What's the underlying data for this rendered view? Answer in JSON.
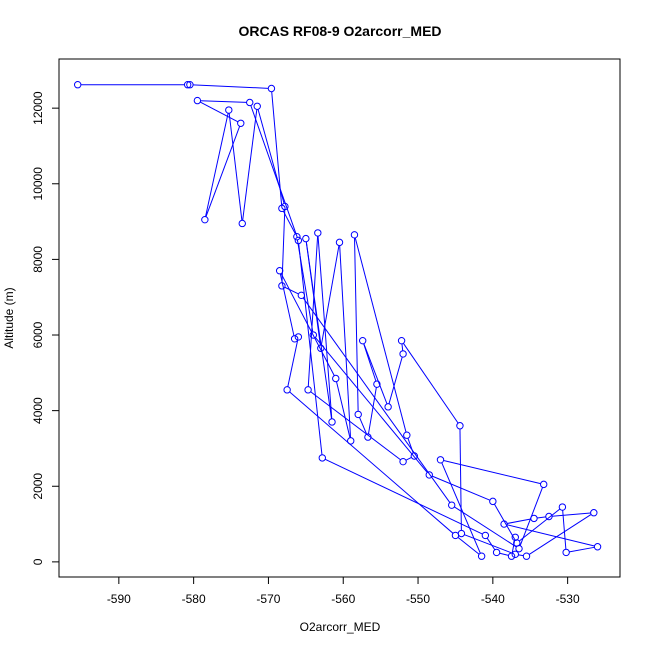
{
  "chart_data": {
    "type": "line",
    "title": "ORCAS RF08-9 O2arcorr_MED",
    "xlabel": "O2arcorr_MED",
    "ylabel": "Altitude (m)",
    "xlim": [
      -598,
      -523
    ],
    "ylim": [
      -400,
      13300
    ],
    "x_ticks": [
      -590,
      -580,
      -570,
      -560,
      -550,
      -540,
      -530
    ],
    "y_ticks": [
      0,
      2000,
      4000,
      6000,
      8000,
      10000,
      12000
    ],
    "line_color": "#0000ff",
    "marker": "open-circle",
    "grid": false,
    "series": [
      {
        "points": [
          [
            -595.5,
            12620
          ],
          [
            -580.8,
            12620
          ],
          [
            -580.5,
            12620
          ],
          [
            -569.6,
            12520
          ],
          [
            -568.2,
            9350
          ],
          [
            -566.2,
            8600
          ],
          [
            -564.0,
            6000
          ],
          [
            -548.5,
            2300
          ],
          [
            -540.0,
            1600
          ],
          [
            -536.8,
            500
          ],
          [
            -530.7,
            1450
          ],
          [
            -530.2,
            250
          ],
          [
            -526.0,
            400
          ],
          [
            -538.5,
            1000
          ],
          [
            -534.5,
            1150
          ],
          [
            -532.5,
            1200
          ],
          [
            -526.5,
            1300
          ],
          [
            -535.5,
            150
          ],
          [
            -537.0,
            200
          ],
          [
            -544.2,
            750
          ],
          [
            -544.4,
            3600
          ],
          [
            -552.2,
            5850
          ],
          [
            -552.0,
            5500
          ],
          [
            -554.0,
            4100
          ],
          [
            -557.4,
            5850
          ],
          [
            -555.5,
            4700
          ],
          [
            -556.7,
            3300
          ],
          [
            -558.0,
            3900
          ],
          [
            -558.5,
            8650
          ],
          [
            -551.5,
            3350
          ],
          [
            -550.5,
            2800
          ],
          [
            -552.0,
            2650
          ],
          [
            -564.7,
            4550
          ],
          [
            -563.4,
            8700
          ],
          [
            -561.5,
            3700
          ],
          [
            -565.0,
            8550
          ],
          [
            -563.0,
            5650
          ],
          [
            -560.5,
            8450
          ],
          [
            -559.0,
            3200
          ],
          [
            -561.0,
            4850
          ],
          [
            -568.5,
            7700
          ],
          [
            -566.5,
            5900
          ],
          [
            -566.0,
            5950
          ],
          [
            -567.5,
            4550
          ],
          [
            -545.0,
            700
          ],
          [
            -541.5,
            150
          ],
          [
            -547.0,
            2700
          ],
          [
            -533.2,
            2050
          ],
          [
            -536.5,
            350
          ],
          [
            -545.5,
            1500
          ],
          [
            -565.6,
            7050
          ],
          [
            -568.2,
            7300
          ],
          [
            -567.8,
            9400
          ],
          [
            -571.5,
            12050
          ],
          [
            -573.5,
            8950
          ],
          [
            -575.3,
            11950
          ],
          [
            -578.5,
            9050
          ],
          [
            -573.7,
            11600
          ],
          [
            -579.5,
            12200
          ],
          [
            -572.5,
            12150
          ],
          [
            -566.0,
            8500
          ],
          [
            -562.8,
            2750
          ],
          [
            -541.0,
            700
          ],
          [
            -539.5,
            250
          ],
          [
            -537.5,
            150
          ],
          [
            -537.0,
            650
          ]
        ]
      }
    ]
  }
}
